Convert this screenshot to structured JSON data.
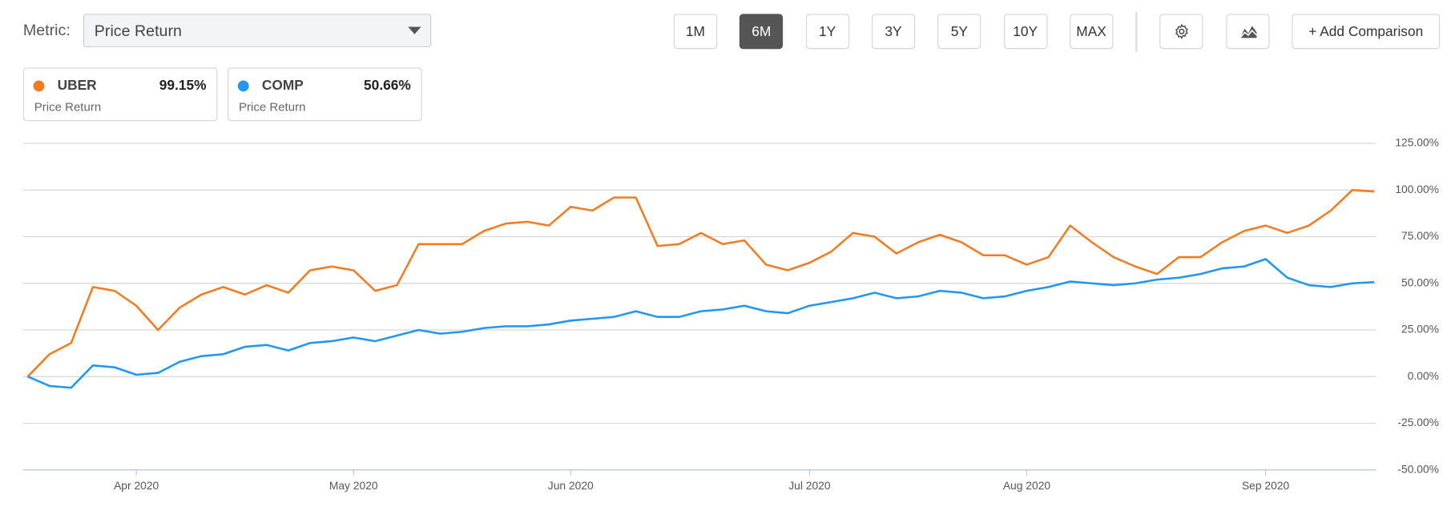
{
  "controls": {
    "metric_label": "Metric:",
    "metric_value": "Price Return",
    "periods": [
      "1M",
      "6M",
      "1Y",
      "3Y",
      "5Y",
      "10Y",
      "MAX"
    ],
    "selected_period": "6M",
    "add_comparison": "+ Add Comparison"
  },
  "chart_data": {
    "type": "line",
    "categories": [
      null,
      null,
      null,
      null,
      null,
      "Apr 2020",
      null,
      null,
      null,
      null,
      null,
      null,
      null,
      null,
      null,
      "May 2020",
      null,
      null,
      null,
      null,
      null,
      null,
      null,
      null,
      null,
      "Jun 2020",
      null,
      null,
      null,
      null,
      null,
      null,
      null,
      null,
      null,
      null,
      "Jul 2020",
      null,
      null,
      null,
      null,
      null,
      null,
      null,
      null,
      null,
      "Aug 2020",
      null,
      null,
      null,
      null,
      null,
      null,
      null,
      null,
      null,
      null,
      "Sep 2020",
      null,
      null,
      null,
      null,
      null
    ],
    "series": [
      {
        "name": "UBER",
        "color": "#f47b20",
        "summary": "99.15%",
        "metric": "Price Return",
        "values": [
          0,
          12,
          18,
          48,
          46,
          38,
          25,
          37,
          44,
          48,
          44,
          49,
          45,
          57,
          59,
          57,
          46,
          49,
          71,
          71,
          71,
          78,
          82,
          83,
          81,
          91,
          89,
          96,
          96,
          70,
          71,
          77,
          71,
          73,
          60,
          57,
          61,
          67,
          77,
          75,
          66,
          72,
          76,
          72,
          65,
          65,
          60,
          64,
          81,
          72,
          64,
          59,
          55,
          64,
          64,
          72,
          78,
          81,
          77,
          81,
          89,
          100,
          99.15
        ]
      },
      {
        "name": "COMP",
        "color": "#2196f3",
        "summary": "50.66%",
        "metric": "Price Return",
        "values": [
          0,
          -5,
          -6,
          6,
          5,
          1,
          2,
          8,
          11,
          12,
          16,
          17,
          14,
          18,
          19,
          21,
          19,
          22,
          25,
          23,
          24,
          26,
          27,
          27,
          28,
          30,
          31,
          32,
          35,
          32,
          32,
          35,
          36,
          38,
          35,
          34,
          38,
          40,
          42,
          45,
          42,
          43,
          46,
          45,
          42,
          43,
          46,
          48,
          51,
          50,
          49,
          50,
          52,
          53,
          55,
          58,
          59,
          63,
          53,
          49,
          48,
          50,
          50.66
        ]
      }
    ],
    "ylim": [
      -50,
      125
    ],
    "yticks": [
      {
        "value": -50,
        "label": "-50.00%"
      },
      {
        "value": -25,
        "label": "-25.00%"
      },
      {
        "value": 0,
        "label": "0.00%"
      },
      {
        "value": 25,
        "label": "25.00%"
      },
      {
        "value": 50,
        "label": "50.00%"
      },
      {
        "value": 75,
        "label": "75.00%"
      },
      {
        "value": 100,
        "label": "100.00%"
      },
      {
        "value": 125,
        "label": "125.00%"
      }
    ],
    "grid": true
  }
}
